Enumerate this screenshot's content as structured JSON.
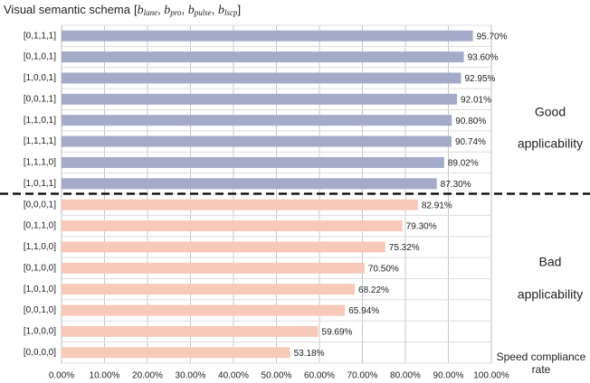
{
  "chart_data": {
    "type": "hbar",
    "title": "Visual semantic schema",
    "schema": {
      "open": "[",
      "close": "]",
      "separator": ", ",
      "terms": [
        {
          "base": "b",
          "sub": "lane"
        },
        {
          "base": "b",
          "sub": "pro"
        },
        {
          "base": "b",
          "sub": "pulse"
        },
        {
          "base": "b",
          "sub": "lscp"
        }
      ]
    },
    "categories": [
      "[0,1,1,1]",
      "[0,1,0,1]",
      "[1,0,0,1]",
      "[0,0,1,1]",
      "[1,1,0,1]",
      "[1,1,1,1]",
      "[1,1,1,0]",
      "[1,0,1,1]",
      "[0,0,0,1]",
      "[0,1,1,0]",
      "[1,1,0,0]",
      "[0,1,0,0]",
      "[1,0,1,0]",
      "[0,0,1,0]",
      "[1,0,0,0]",
      "[0,0,0,0]"
    ],
    "values": [
      95.7,
      93.6,
      92.95,
      92.01,
      90.8,
      90.74,
      89.02,
      87.3,
      82.91,
      79.3,
      75.32,
      70.5,
      68.22,
      65.94,
      59.69,
      53.18
    ],
    "value_labels": [
      "95.70%",
      "93.60%",
      "92.95%",
      "92.01%",
      "90.80%",
      "90.74%",
      "89.02%",
      "87.30%",
      "82.91%",
      "79.30%",
      "75.32%",
      "70.50%",
      "68.22%",
      "65.94%",
      "59.69%",
      "53.18%"
    ],
    "colors": [
      "#a3abc9",
      "#a3abc9",
      "#a3abc9",
      "#a3abc9",
      "#a3abc9",
      "#a3abc9",
      "#a3abc9",
      "#a3abc9",
      "#f6c9b9",
      "#f6c9b9",
      "#f6c9b9",
      "#f6c9b9",
      "#f6c9b9",
      "#f6c9b9",
      "#f6c9b9",
      "#f6c9b9"
    ],
    "xlim": [
      0,
      100
    ],
    "xticks": [
      {
        "value": 0,
        "label": "0.00%"
      },
      {
        "value": 10,
        "label": "10.00%"
      },
      {
        "value": 20,
        "label": "20.00%"
      },
      {
        "value": 30,
        "label": "30.00%"
      },
      {
        "value": 40,
        "label": "40.00%"
      },
      {
        "value": 50,
        "label": "50.00%"
      },
      {
        "value": 60,
        "label": "60.00%"
      },
      {
        "value": 70,
        "label": "70.00%"
      },
      {
        "value": 80,
        "label": "80.00%"
      },
      {
        "value": 90,
        "label": "90.00%"
      },
      {
        "value": 100,
        "label": "100.00%"
      }
    ],
    "xlabel": [
      "Speed compliance",
      "rate"
    ],
    "grid": true,
    "annotations": [
      "Good",
      "applicability",
      "Bad",
      "applicability"
    ]
  }
}
